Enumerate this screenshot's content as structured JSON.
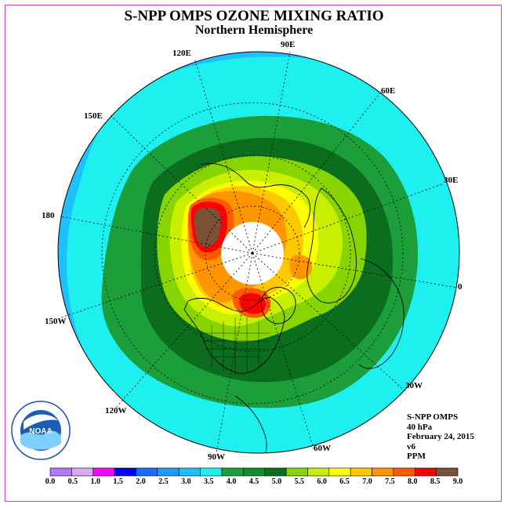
{
  "title": "S-NPP OMPS OZONE MIXING RATIO",
  "subtitle": "Northern Hemisphere",
  "longitude_labels": [
    "90E",
    "60E",
    "30E",
    "0",
    "30W",
    "60W",
    "90W",
    "120W",
    "150W",
    "180",
    "150E",
    "120E"
  ],
  "info": {
    "instrument": "S-NPP OMPS",
    "level": "40 hPa",
    "date": "February 24, 2015",
    "version": "v6",
    "units": "PPM"
  },
  "logo_text": "NOAA",
  "colorbar": {
    "ticks": [
      "0.0",
      "0.5",
      "1.0",
      "1.5",
      "2.0",
      "2.5",
      "3.0",
      "3.5",
      "4.0",
      "4.5",
      "5.0",
      "5.5",
      "6.0",
      "6.5",
      "7.0",
      "7.5",
      "8.0",
      "8.5",
      "9.0"
    ],
    "colors": [
      "#b27cf0",
      "#dcaaf0",
      "#ff00ff",
      "#0000ff",
      "#1b6bff",
      "#1e9bff",
      "#1ec1ff",
      "#1eefef",
      "#1c9e3b",
      "#0f8f2c",
      "#0a6e1e",
      "#88d400",
      "#c8ee00",
      "#ffff00",
      "#ffc800",
      "#ff9600",
      "#ff5a00",
      "#ff0000",
      "#7a5036"
    ]
  },
  "map_colors": {
    "c35": "#1ec1ff",
    "c40": "#1eefef",
    "c45": "#1c9e3b",
    "c50": "#0a6e1e",
    "c55": "#88d400",
    "c60": "#c8ee00",
    "c65": "#ffff00",
    "c70": "#ffc800",
    "c75": "#ff9600",
    "c80": "#ff5a00",
    "c85": "#ff0000",
    "c90": "#7a5036",
    "nodata": "#ffffff"
  }
}
